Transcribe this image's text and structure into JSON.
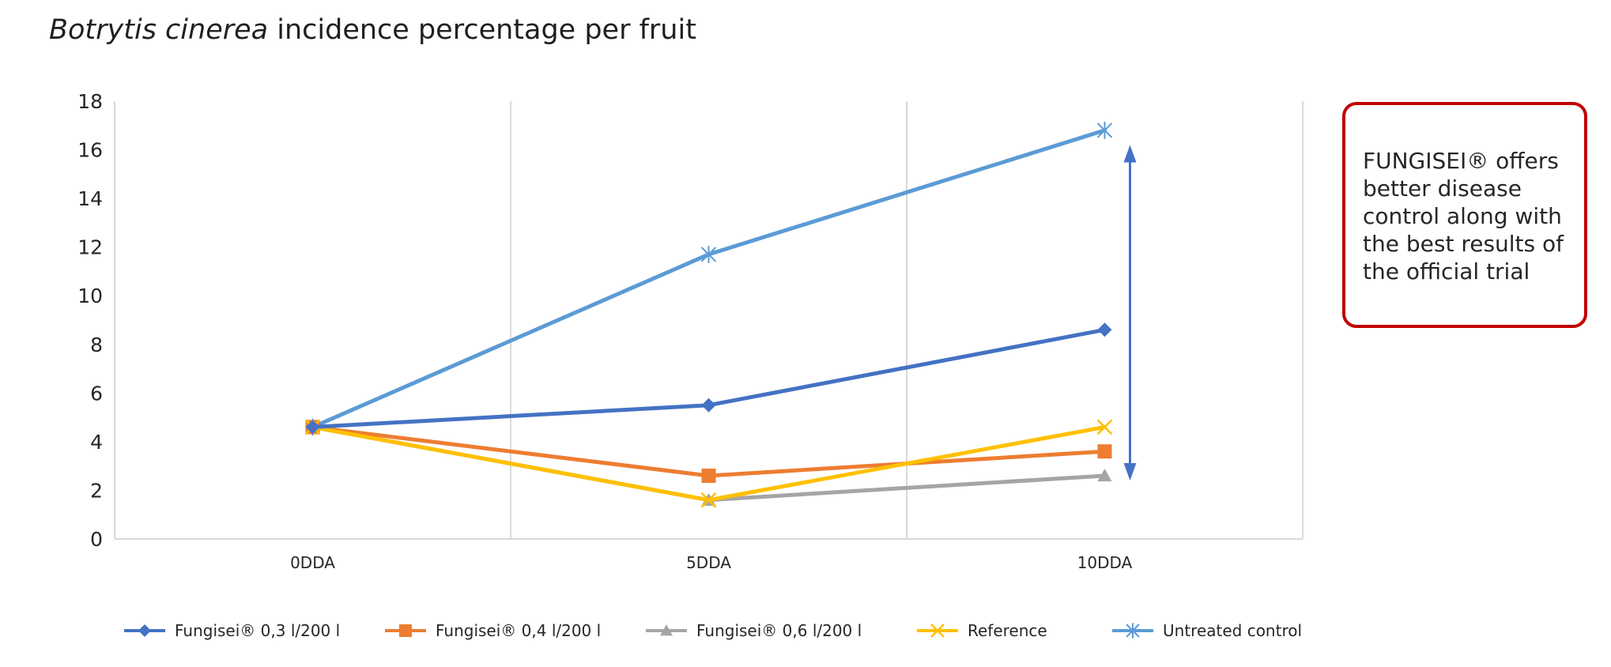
{
  "title": {
    "italic": "Botrytis cinerea",
    "rest": " incidence percentage per fruit"
  },
  "callout": {
    "text": "FUNGISEI® offers better disease control along with the best results of the official trial",
    "border_color": "#c00000"
  },
  "chart_data": {
    "type": "line",
    "categories": [
      "0DDA",
      "5DDA",
      "10DDA"
    ],
    "ylim": [
      0,
      18
    ],
    "yticks": [
      "0",
      "2",
      "4",
      "6",
      "8",
      "10",
      "12",
      "14",
      "16",
      "18"
    ],
    "grid": "vertical",
    "legend_position": "bottom",
    "annotation": "double-headed arrow spanning 10DDA from Untreated control to treatments",
    "series": [
      {
        "name": "Fungisei® 0,3 l/200 l",
        "values": [
          4.6,
          5.5,
          8.6
        ],
        "color": "#4472c4",
        "marker": "diamond"
      },
      {
        "name": "Fungisei® 0,4 l/200 l",
        "values": [
          4.6,
          2.6,
          3.6
        ],
        "color": "#ed7d31",
        "marker": "square"
      },
      {
        "name": "Fungisei® 0,6 l/200 l",
        "values": [
          4.6,
          1.6,
          2.6
        ],
        "color": "#a5a5a5",
        "marker": "triangle"
      },
      {
        "name": "Reference",
        "values": [
          4.6,
          1.6,
          4.6
        ],
        "color": "#ffc000",
        "marker": "x"
      },
      {
        "name": "Untreated control",
        "values": [
          4.6,
          11.7,
          16.8
        ],
        "color": "#5b9bd5",
        "marker": "asterisk"
      }
    ]
  }
}
